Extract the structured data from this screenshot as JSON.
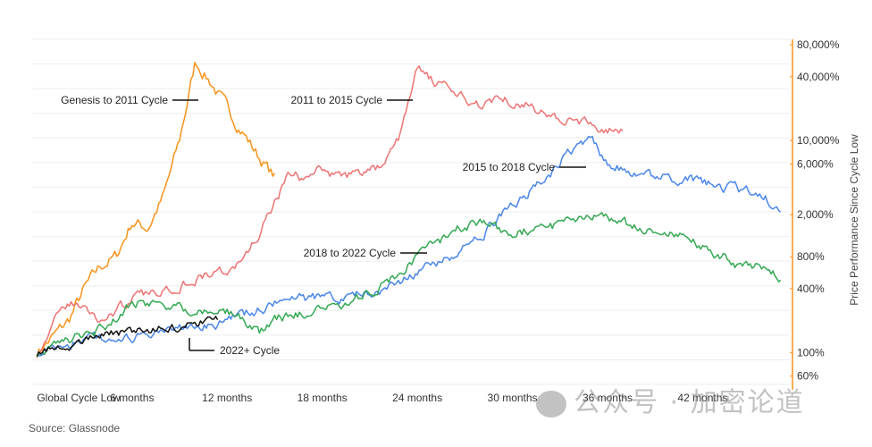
{
  "chart_data": {
    "type": "line",
    "ylabel": "Price Performance Since Cycle Low",
    "yscale": "log",
    "ylim": [
      50,
      90000
    ],
    "xlim": [
      -0.3,
      47.5
    ],
    "x_unit": "months",
    "x_ticks": [
      {
        "value": 0,
        "label": "Global Cycle Low"
      },
      {
        "value": 6,
        "label": "6 months"
      },
      {
        "value": 12,
        "label": "12 months"
      },
      {
        "value": 18,
        "label": "18 months"
      },
      {
        "value": 24,
        "label": "24 months"
      },
      {
        "value": 30,
        "label": "30 months"
      },
      {
        "value": 36,
        "label": "36 months"
      },
      {
        "value": 42,
        "label": "42 months"
      }
    ],
    "y_ticks": [
      {
        "value": 60,
        "label": "60%"
      },
      {
        "value": 100,
        "label": "100%"
      },
      {
        "value": 400,
        "label": "400%"
      },
      {
        "value": 800,
        "label": "800%"
      },
      {
        "value": 2000,
        "label": "2,000%"
      },
      {
        "value": 6000,
        "label": "6,000%"
      },
      {
        "value": 10000,
        "label": "10,000%"
      },
      {
        "value": 40000,
        "label": "40,000%"
      },
      {
        "value": 80000,
        "label": "80,000%"
      }
    ],
    "grid": true,
    "series": [
      {
        "name": "Genesis to 2011 Cycle",
        "color": "#f7931a",
        "noise": 0.05,
        "points": [
          [
            0,
            100
          ],
          [
            1,
            140
          ],
          [
            2,
            200
          ],
          [
            3,
            400
          ],
          [
            4,
            650
          ],
          [
            5,
            800
          ],
          [
            6,
            1700
          ],
          [
            7,
            1500
          ],
          [
            8,
            3000
          ],
          [
            9,
            10000
          ],
          [
            10,
            55000
          ],
          [
            11,
            35000
          ],
          [
            12,
            20000
          ],
          [
            13,
            12000
          ],
          [
            14,
            7000
          ],
          [
            15,
            4500
          ]
        ]
      },
      {
        "name": "2011 to 2015 Cycle",
        "color": "#ee7373",
        "noise": 0.04,
        "points": [
          [
            0,
            100
          ],
          [
            1,
            180
          ],
          [
            2,
            300
          ],
          [
            3,
            260
          ],
          [
            4,
            200
          ],
          [
            5,
            250
          ],
          [
            6,
            320
          ],
          [
            7,
            350
          ],
          [
            8,
            400
          ],
          [
            9,
            430
          ],
          [
            10,
            500
          ],
          [
            11,
            550
          ],
          [
            12,
            600
          ],
          [
            13,
            700
          ],
          [
            14,
            1300
          ],
          [
            15,
            2500
          ],
          [
            16,
            5000
          ],
          [
            17,
            4200
          ],
          [
            18,
            5500
          ],
          [
            19,
            4500
          ],
          [
            20,
            4800
          ],
          [
            21,
            5200
          ],
          [
            22,
            6000
          ],
          [
            23,
            12000
          ],
          [
            24,
            50000
          ],
          [
            25,
            35000
          ],
          [
            26,
            30000
          ],
          [
            27,
            24000
          ],
          [
            28,
            22000
          ],
          [
            29,
            26000
          ],
          [
            30,
            24000
          ],
          [
            31,
            22000
          ],
          [
            32,
            18000
          ],
          [
            33,
            16000
          ],
          [
            34,
            15000
          ],
          [
            35,
            14000
          ],
          [
            36,
            13000
          ],
          [
            37,
            11500
          ]
        ]
      },
      {
        "name": "2015 to 2018 Cycle",
        "color": "#4a86e8",
        "noise": 0.04,
        "points": [
          [
            0,
            100
          ],
          [
            2,
            120
          ],
          [
            4,
            140
          ],
          [
            6,
            130
          ],
          [
            8,
            150
          ],
          [
            10,
            180
          ],
          [
            12,
            200
          ],
          [
            14,
            250
          ],
          [
            16,
            330
          ],
          [
            18,
            320
          ],
          [
            20,
            350
          ],
          [
            22,
            400
          ],
          [
            24,
            550
          ],
          [
            26,
            800
          ],
          [
            28,
            1200
          ],
          [
            30,
            2500
          ],
          [
            32,
            4000
          ],
          [
            34,
            9000
          ],
          [
            35,
            10500
          ],
          [
            36,
            6000
          ],
          [
            38,
            5000
          ],
          [
            40,
            4500
          ],
          [
            42,
            4000
          ],
          [
            44,
            3500
          ],
          [
            46,
            3000
          ],
          [
            47,
            1800
          ]
        ]
      },
      {
        "name": "2018 to 2022 Cycle",
        "color": "#34a853",
        "noise": 0.04,
        "points": [
          [
            0,
            100
          ],
          [
            2,
            130
          ],
          [
            4,
            160
          ],
          [
            6,
            300
          ],
          [
            8,
            280
          ],
          [
            10,
            250
          ],
          [
            12,
            240
          ],
          [
            13,
            200
          ],
          [
            14,
            150
          ],
          [
            15,
            200
          ],
          [
            16,
            230
          ],
          [
            18,
            250
          ],
          [
            20,
            300
          ],
          [
            22,
            450
          ],
          [
            24,
            800
          ],
          [
            26,
            1300
          ],
          [
            28,
            1800
          ],
          [
            30,
            1300
          ],
          [
            32,
            1500
          ],
          [
            34,
            1700
          ],
          [
            35,
            2000
          ],
          [
            36,
            1800
          ],
          [
            38,
            1500
          ],
          [
            40,
            1400
          ],
          [
            42,
            1000
          ],
          [
            44,
            700
          ],
          [
            46,
            600
          ],
          [
            47,
            480
          ]
        ]
      },
      {
        "name": "2022+ Cycle",
        "color": "#111111",
        "noise": 0.035,
        "points": [
          [
            0,
            100
          ],
          [
            1,
            105
          ],
          [
            2,
            115
          ],
          [
            3,
            130
          ],
          [
            4,
            145
          ],
          [
            5,
            150
          ],
          [
            6,
            160
          ],
          [
            7,
            155
          ],
          [
            8,
            175
          ],
          [
            9,
            165
          ],
          [
            10,
            190
          ],
          [
            11,
            200
          ],
          [
            11.5,
            205
          ]
        ]
      }
    ],
    "annotations": [
      {
        "text": "Genesis to 2011 Cycle",
        "series": 0
      },
      {
        "text": "2011 to 2015 Cycle",
        "series": 1
      },
      {
        "text": "2015 to 2018 Cycle",
        "series": 2
      },
      {
        "text": "2018 to 2022 Cycle",
        "series": 3
      },
      {
        "text": "2022+ Cycle",
        "series": 4
      }
    ]
  },
  "source": "Source: Glassnode",
  "watermark": "公众号 · 加密论道"
}
